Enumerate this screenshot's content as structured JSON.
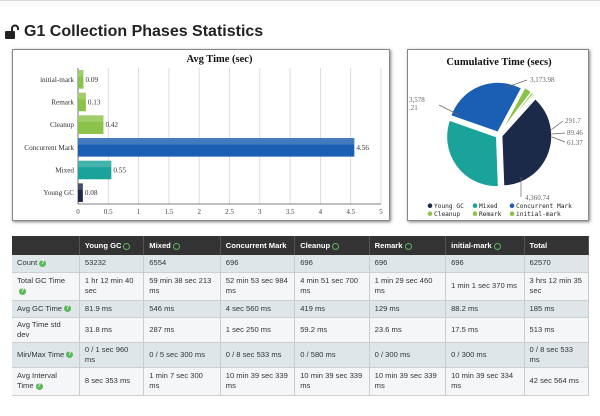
{
  "page": {
    "title": "G1 Collection Phases Statistics"
  },
  "chart_data": [
    {
      "type": "bar",
      "title": "Avg Time (sec)",
      "orientation": "horizontal",
      "categories": [
        "initial-mark",
        "Remark",
        "Cleanup",
        "Concurrent Mark",
        "Mixed",
        "Young GC"
      ],
      "values": [
        0.09,
        0.13,
        0.42,
        4.56,
        0.55,
        0.08
      ],
      "colors": [
        "#8bc34a",
        "#8bc34a",
        "#8bc34a",
        "#1a5fb4",
        "#1aa39a",
        "#1b2a48"
      ],
      "xlim": [
        0,
        5
      ],
      "xticks": [
        "0",
        "0.5",
        "1",
        "1.5",
        "2",
        "2.5",
        "3",
        "3.5",
        "4",
        "4.5",
        "5"
      ],
      "grid": true
    },
    {
      "type": "pie",
      "title": "Cumulative Time (secs)",
      "slices": [
        {
          "name": "Young GC",
          "value": 4360.74,
          "color": "#1b2a48",
          "label": "4,360.74"
        },
        {
          "name": "Mixed",
          "value": 3578.21,
          "color": "#1aa39a",
          "label_lines": [
            "3,578",
            ".21"
          ]
        },
        {
          "name": "Concurrent Mark",
          "value": 3173.98,
          "color": "#1a5fb4",
          "label": "3,173.98"
        },
        {
          "name": "Cleanup",
          "value": 291.7,
          "color": "#8bc34a",
          "label": "291.7"
        },
        {
          "name": "Remark",
          "value": 89.46,
          "color": "#8bc34a",
          "label": "89.46"
        },
        {
          "name": "initial-mark",
          "value": 61.37,
          "color": "#8bc34a",
          "label": "61.37"
        }
      ],
      "legend": [
        {
          "name": "Young GC",
          "color": "#1b2a48"
        },
        {
          "name": "Mixed",
          "color": "#1aa39a"
        },
        {
          "name": "Concurrent Mark",
          "color": "#1a5fb4"
        },
        {
          "name": "Cleanup",
          "color": "#8bc34a"
        },
        {
          "name": "Remark",
          "color": "#8bc34a"
        },
        {
          "name": "initial-mark",
          "color": "#8bc34a"
        }
      ],
      "legend_position": "bottom"
    }
  ],
  "table": {
    "headers": [
      "",
      "Young GC",
      "Mixed",
      "Concurrent Mark",
      "Cleanup",
      "Remark",
      "initial-mark",
      "Total"
    ],
    "header_icons": [
      false,
      true,
      true,
      false,
      true,
      true,
      true,
      false
    ],
    "rows": [
      {
        "label": "Count",
        "help": true,
        "cells": [
          "53232",
          "6554",
          "696",
          "696",
          "696",
          "696",
          "62570"
        ]
      },
      {
        "label": "Total GC Time",
        "help": true,
        "cells": [
          "1 hr 12 min 40 sec",
          "59 min 38 sec 213 ms",
          "52 min 53 sec 984 ms",
          "4 min 51 sec 700 ms",
          "1 min 29 sec 460 ms",
          "1 min 1 sec 370 ms",
          "3 hrs 12 min 35 sec"
        ]
      },
      {
        "label": "Avg GC Time",
        "help": true,
        "cells": [
          "81.9 ms",
          "546 ms",
          "4 sec 560 ms",
          "419 ms",
          "129 ms",
          "88.2 ms",
          "185 ms"
        ]
      },
      {
        "label": "Avg Time std dev",
        "help": false,
        "cells": [
          "31.8 ms",
          "287 ms",
          "1 sec 250 ms",
          "59.2 ms",
          "23.6 ms",
          "17.5 ms",
          "513 ms"
        ]
      },
      {
        "label": "Min/Max Time",
        "help": true,
        "cells": [
          "0 / 1 sec 960 ms",
          "0 / 5 sec 300 ms",
          "0 / 8 sec 533 ms",
          "0 / 580 ms",
          "0 / 300 ms",
          "0 / 300 ms",
          "0 / 8 sec 533 ms"
        ]
      },
      {
        "label": "Avg Interval Time",
        "help": true,
        "cells": [
          "8 sec 353 ms",
          "1 min 7 sec 300 ms",
          "10 min 39 sec 339 ms",
          "10 min 39 sec 339 ms",
          "10 min 39 sec 339 ms",
          "10 min 39 sec 334 ms",
          "42 sec 564 ms"
        ]
      }
    ]
  }
}
